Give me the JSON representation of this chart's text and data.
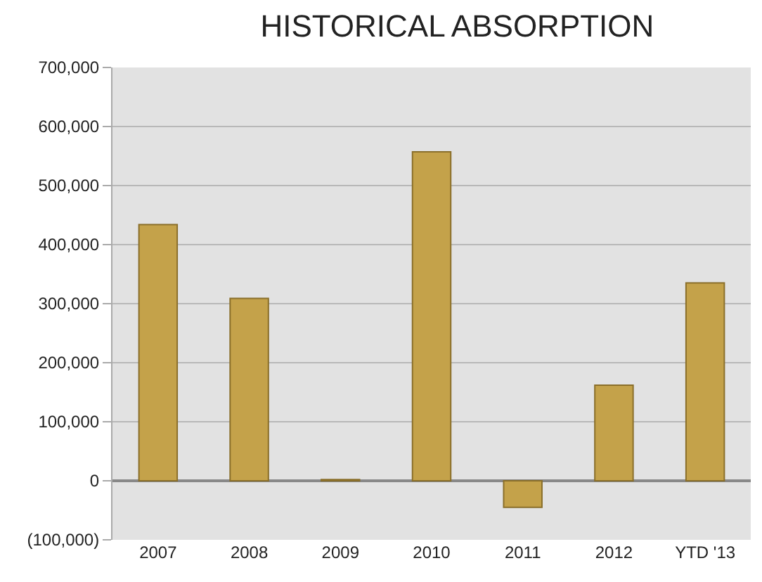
{
  "chart_data": {
    "type": "bar",
    "title": "HISTORICAL ABSORPTION",
    "categories": [
      "2007",
      "2008",
      "2009",
      "2010",
      "2011",
      "2012",
      "YTD '13"
    ],
    "values": [
      434000,
      309000,
      2000,
      557000,
      -45000,
      162000,
      335000
    ],
    "color": "#c4a24a",
    "ylim": [
      -100000,
      700000
    ],
    "yticks": [
      {
        "value": -100000,
        "label": "(100,000)"
      },
      0,
      {
        "value": 100000,
        "label": "100,000"
      },
      {
        "value": 200000,
        "label": "200,000"
      },
      {
        "value": 300000,
        "label": "300,000"
      },
      {
        "value": 400000,
        "label": "400,000"
      },
      {
        "value": 500000,
        "label": "500,000"
      },
      {
        "value": 600000,
        "label": "600,000"
      },
      {
        "value": 700000,
        "label": "700,000"
      }
    ],
    "grid": "y",
    "legend": false
  }
}
